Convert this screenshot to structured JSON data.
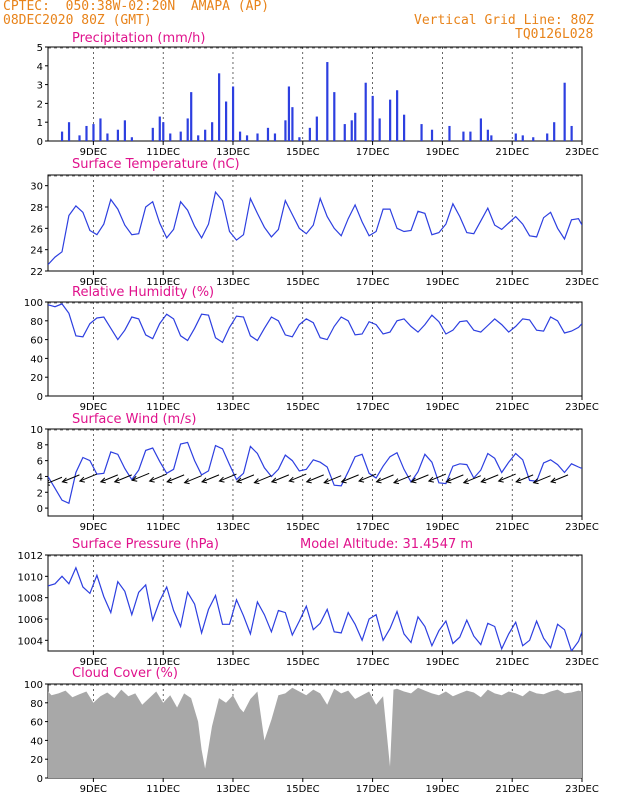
{
  "header": {
    "line1": "CPTEC:  050:38W-02:20N  AMAPA (AP)",
    "line2": "08DEC2020 80Z (GMT)",
    "grid_note": "Vertical Grid Line: 80Z",
    "code": "TQ0126L028",
    "model_altitude": "Model Altitude: 31.4547 m"
  },
  "colors": {
    "header": "#e8831a",
    "title": "#e0128c",
    "series": "#2d3fe0",
    "cloud": "#a8a8a8",
    "grid": "#000000"
  },
  "chart_data": [
    {
      "id": "precip",
      "type": "bar",
      "title": "Precipitation (mm/h)",
      "x_range_days": [
        7.7,
        23.0
      ],
      "ylim": [
        0,
        5
      ],
      "yticks": [
        "0",
        "1",
        "2",
        "3",
        "4",
        "5"
      ],
      "xtick_labels": [
        "9DEC",
        "11DEC",
        "13DEC",
        "15DEC",
        "17DEC",
        "19DEC",
        "21DEC",
        "23DEC"
      ],
      "x_day": [
        8.1,
        8.3,
        8.6,
        8.8,
        9.0,
        9.2,
        9.4,
        9.7,
        9.9,
        10.1,
        10.7,
        10.9,
        11.0,
        11.2,
        11.5,
        11.7,
        11.8,
        12.0,
        12.2,
        12.4,
        12.6,
        12.8,
        13.0,
        13.2,
        13.4,
        13.7,
        14.0,
        14.2,
        14.5,
        14.6,
        14.7,
        14.9,
        15.2,
        15.4,
        15.7,
        15.9,
        16.2,
        16.4,
        16.5,
        16.8,
        17.0,
        17.2,
        17.5,
        17.7,
        17.9,
        18.4,
        18.7,
        19.2,
        19.6,
        19.8,
        20.1,
        20.3,
        20.4,
        21.1,
        21.3,
        21.6,
        22.0,
        22.2,
        22.5,
        22.7
      ],
      "values": [
        0.5,
        1.0,
        0.3,
        0.8,
        0.9,
        1.2,
        0.4,
        0.6,
        1.1,
        0.2,
        0.7,
        1.3,
        1.0,
        0.4,
        0.5,
        1.2,
        2.6,
        0.3,
        0.6,
        1.0,
        3.6,
        2.1,
        2.9,
        0.5,
        0.3,
        0.4,
        0.7,
        0.4,
        1.1,
        2.9,
        1.8,
        0.2,
        0.7,
        1.3,
        4.2,
        2.6,
        0.9,
        1.1,
        1.5,
        3.1,
        2.4,
        1.2,
        2.2,
        2.7,
        1.4,
        0.9,
        0.6,
        0.8,
        0.5,
        0.5,
        1.2,
        0.6,
        0.3,
        0.4,
        0.3,
        0.2,
        0.4,
        1.0,
        3.1,
        0.8
      ]
    },
    {
      "id": "temp",
      "type": "line",
      "title": "Surface Temperature (nC)",
      "x_range_days": [
        7.7,
        23.0
      ],
      "ylim": [
        22,
        31
      ],
      "yticks": [
        "22",
        "24",
        "26",
        "28",
        "30"
      ],
      "xtick_labels": [
        "9DEC",
        "11DEC",
        "13DEC",
        "15DEC",
        "17DEC",
        "19DEC",
        "21DEC",
        "23DEC"
      ],
      "x_day": [
        7.7,
        7.9,
        8.1,
        8.3,
        8.5,
        8.7,
        8.9,
        9.1,
        9.3,
        9.5,
        9.7,
        9.9,
        10.1,
        10.3,
        10.5,
        10.7,
        10.9,
        11.1,
        11.3,
        11.5,
        11.7,
        11.9,
        12.1,
        12.3,
        12.5,
        12.7,
        12.9,
        13.1,
        13.3,
        13.5,
        13.7,
        13.9,
        14.1,
        14.3,
        14.5,
        14.7,
        14.9,
        15.1,
        15.3,
        15.5,
        15.7,
        15.9,
        16.1,
        16.3,
        16.5,
        16.7,
        16.9,
        17.1,
        17.3,
        17.5,
        17.7,
        17.9,
        18.1,
        18.3,
        18.5,
        18.7,
        18.9,
        19.1,
        19.3,
        19.5,
        19.7,
        19.9,
        20.1,
        20.3,
        20.5,
        20.7,
        20.9,
        21.1,
        21.3,
        21.5,
        21.7,
        21.9,
        22.1,
        22.3,
        22.5,
        22.7,
        22.9,
        23.0
      ],
      "values": [
        22.6,
        23.3,
        23.8,
        27.2,
        28.1,
        27.5,
        25.8,
        25.4,
        26.4,
        28.7,
        27.8,
        26.3,
        25.4,
        25.5,
        28.0,
        28.5,
        26.5,
        25.1,
        25.9,
        28.5,
        27.7,
        26.2,
        25.1,
        26.4,
        29.4,
        28.6,
        25.7,
        24.9,
        25.4,
        28.8,
        27.4,
        26.1,
        25.2,
        25.9,
        28.6,
        27.3,
        26.0,
        25.5,
        26.3,
        28.8,
        27.1,
        26.0,
        25.3,
        26.9,
        28.2,
        26.6,
        25.3,
        25.7,
        27.8,
        27.8,
        26.0,
        25.7,
        25.8,
        27.6,
        27.4,
        25.4,
        25.6,
        26.4,
        28.3,
        27.1,
        25.6,
        25.5,
        26.7,
        27.9,
        26.3,
        25.9,
        26.5,
        27.1,
        26.4,
        25.3,
        25.2,
        27.0,
        27.5,
        26.0,
        25.0,
        26.8,
        26.9,
        26.3
      ]
    },
    {
      "id": "rh",
      "type": "line",
      "title": "Relative Humidity (%)",
      "x_range_days": [
        7.7,
        23.0
      ],
      "ylim": [
        0,
        100
      ],
      "yticks": [
        "0",
        "20",
        "40",
        "60",
        "80",
        "100"
      ],
      "xtick_labels": [
        "9DEC",
        "11DEC",
        "13DEC",
        "15DEC",
        "17DEC",
        "19DEC",
        "21DEC",
        "23DEC"
      ],
      "x_day": [
        7.7,
        7.9,
        8.1,
        8.3,
        8.5,
        8.7,
        8.9,
        9.1,
        9.3,
        9.5,
        9.7,
        9.9,
        10.1,
        10.3,
        10.5,
        10.7,
        10.9,
        11.1,
        11.3,
        11.5,
        11.7,
        11.9,
        12.1,
        12.3,
        12.5,
        12.7,
        12.9,
        13.1,
        13.3,
        13.5,
        13.7,
        13.9,
        14.1,
        14.3,
        14.5,
        14.7,
        14.9,
        15.1,
        15.3,
        15.5,
        15.7,
        15.9,
        16.1,
        16.3,
        16.5,
        16.7,
        16.9,
        17.1,
        17.3,
        17.5,
        17.7,
        17.9,
        18.1,
        18.3,
        18.5,
        18.7,
        18.9,
        19.1,
        19.3,
        19.5,
        19.7,
        19.9,
        20.1,
        20.3,
        20.5,
        20.7,
        20.9,
        21.1,
        21.3,
        21.5,
        21.7,
        21.9,
        22.1,
        22.3,
        22.5,
        22.7,
        22.9,
        23.0
      ],
      "values": [
        97,
        95,
        98,
        88,
        64,
        63,
        77,
        83,
        84,
        72,
        60,
        70,
        84,
        82,
        65,
        61,
        77,
        87,
        82,
        64,
        59,
        72,
        87,
        86,
        62,
        57,
        73,
        85,
        84,
        64,
        59,
        72,
        84,
        80,
        65,
        63,
        76,
        82,
        78,
        62,
        60,
        74,
        84,
        80,
        65,
        66,
        79,
        76,
        66,
        68,
        80,
        82,
        74,
        68,
        76,
        86,
        79,
        66,
        70,
        79,
        80,
        70,
        68,
        75,
        82,
        76,
        68,
        74,
        82,
        81,
        70,
        69,
        84,
        80,
        67,
        69,
        73,
        77
      ]
    },
    {
      "id": "wind",
      "type": "line",
      "title": "Surface Wind (m/s)",
      "x_range_days": [
        7.7,
        23.0
      ],
      "ylim": [
        -1,
        10
      ],
      "yticks": [
        "0",
        "2",
        "4",
        "6",
        "8",
        "10"
      ],
      "xtick_labels": [
        "9DEC",
        "11DEC",
        "13DEC",
        "15DEC",
        "17DEC",
        "19DEC",
        "21DEC",
        "23DEC"
      ],
      "x_day": [
        7.7,
        7.9,
        8.1,
        8.3,
        8.5,
        8.7,
        8.9,
        9.1,
        9.3,
        9.5,
        9.7,
        9.9,
        10.1,
        10.3,
        10.5,
        10.7,
        10.9,
        11.1,
        11.3,
        11.5,
        11.7,
        11.9,
        12.1,
        12.3,
        12.5,
        12.7,
        12.9,
        13.1,
        13.3,
        13.5,
        13.7,
        13.9,
        14.1,
        14.3,
        14.5,
        14.7,
        14.9,
        15.1,
        15.3,
        15.5,
        15.7,
        15.9,
        16.1,
        16.3,
        16.5,
        16.7,
        16.9,
        17.1,
        17.3,
        17.5,
        17.7,
        17.9,
        18.1,
        18.3,
        18.5,
        18.7,
        18.9,
        19.1,
        19.3,
        19.5,
        19.7,
        19.9,
        20.1,
        20.3,
        20.5,
        20.7,
        20.9,
        21.1,
        21.3,
        21.5,
        21.7,
        21.9,
        22.1,
        22.3,
        22.5,
        22.7,
        22.9,
        23.0
      ],
      "values": [
        4.0,
        2.5,
        1.0,
        0.6,
        4.5,
        6.4,
        6.0,
        4.3,
        4.4,
        7.1,
        6.8,
        5.0,
        3.6,
        4.8,
        7.3,
        7.6,
        5.9,
        4.4,
        4.9,
        8.1,
        8.3,
        6.0,
        4.2,
        4.7,
        7.9,
        7.5,
        5.5,
        3.6,
        4.4,
        7.8,
        6.9,
        5.1,
        4.0,
        4.9,
        6.7,
        6.0,
        4.7,
        4.9,
        6.1,
        5.8,
        5.2,
        2.9,
        2.8,
        4.6,
        6.5,
        6.8,
        4.4,
        3.8,
        5.3,
        6.5,
        7.0,
        4.9,
        3.3,
        4.6,
        6.8,
        5.8,
        3.2,
        3.1,
        5.3,
        5.6,
        5.5,
        3.8,
        4.8,
        6.9,
        6.3,
        4.5,
        5.8,
        6.9,
        6.1,
        3.5,
        3.4,
        5.7,
        6.1,
        5.5,
        4.5,
        5.6,
        5.2,
        5.0
      ],
      "arrows_day": [
        8.1,
        8.6,
        9.1,
        9.7,
        10.1,
        10.6,
        11.1,
        11.6,
        12.1,
        12.6,
        13.1,
        13.6,
        14.1,
        14.6,
        15.1,
        15.6,
        16.1,
        16.6,
        17.1,
        17.6,
        18.1,
        18.6,
        19.1,
        19.6,
        20.1,
        20.6,
        21.1,
        21.6,
        22.1,
        22.6
      ],
      "arrows_level": [
        3.9,
        4.2,
        4.3,
        4.2,
        4.2,
        4.4,
        4.3,
        4.2,
        4.1,
        4.2,
        4.3,
        4.2,
        4.1,
        4.2,
        4.3,
        4.2,
        4.1,
        4.2,
        4.3,
        4.2,
        4.1,
        4.2,
        4.3,
        4.2,
        4.1,
        4.2,
        4.3,
        4.2,
        4.1,
        4.2
      ]
    },
    {
      "id": "press",
      "type": "line",
      "title": "Surface Pressure (hPa)",
      "x_range_days": [
        7.7,
        23.0
      ],
      "ylim": [
        1003,
        1012
      ],
      "yticks": [
        "1004",
        "1006",
        "1008",
        "1010",
        "1012"
      ],
      "xtick_labels": [
        "9DEC",
        "11DEC",
        "13DEC",
        "15DEC",
        "17DEC",
        "19DEC",
        "21DEC",
        "23DEC"
      ],
      "x_day": [
        7.7,
        7.9,
        8.1,
        8.3,
        8.5,
        8.7,
        8.9,
        9.1,
        9.3,
        9.5,
        9.7,
        9.9,
        10.1,
        10.3,
        10.5,
        10.7,
        10.9,
        11.1,
        11.3,
        11.5,
        11.7,
        11.9,
        12.1,
        12.3,
        12.5,
        12.7,
        12.9,
        13.1,
        13.3,
        13.5,
        13.7,
        13.9,
        14.1,
        14.3,
        14.5,
        14.7,
        14.9,
        15.1,
        15.3,
        15.5,
        15.7,
        15.9,
        16.1,
        16.3,
        16.5,
        16.7,
        16.9,
        17.1,
        17.3,
        17.5,
        17.7,
        17.9,
        18.1,
        18.3,
        18.5,
        18.7,
        18.9,
        19.1,
        19.3,
        19.5,
        19.7,
        19.9,
        20.1,
        20.3,
        20.5,
        20.7,
        20.9,
        21.1,
        21.3,
        21.5,
        21.7,
        21.9,
        22.1,
        22.3,
        22.5,
        22.7,
        22.9,
        23.0
      ],
      "values": [
        1009.1,
        1009.3,
        1010.0,
        1009.3,
        1010.8,
        1009.0,
        1008.4,
        1010.1,
        1008.1,
        1006.6,
        1009.5,
        1008.6,
        1006.4,
        1008.5,
        1009.2,
        1005.9,
        1007.7,
        1009.0,
        1006.8,
        1005.3,
        1008.5,
        1007.4,
        1004.7,
        1006.9,
        1008.2,
        1005.5,
        1005.5,
        1007.8,
        1006.3,
        1004.6,
        1007.6,
        1006.4,
        1004.8,
        1006.8,
        1006.6,
        1004.5,
        1005.8,
        1007.2,
        1005.0,
        1005.6,
        1006.9,
        1004.8,
        1004.7,
        1006.6,
        1005.5,
        1004.0,
        1006.0,
        1006.4,
        1004.0,
        1005.1,
        1006.7,
        1004.6,
        1003.8,
        1006.2,
        1005.3,
        1003.5,
        1004.9,
        1005.8,
        1003.7,
        1004.3,
        1005.9,
        1004.4,
        1003.6,
        1005.6,
        1005.3,
        1003.2,
        1004.6,
        1005.7,
        1003.5,
        1004.0,
        1005.8,
        1004.2,
        1003.3,
        1005.5,
        1005.0,
        1003.0,
        1003.9,
        1004.8
      ]
    },
    {
      "id": "cloud",
      "type": "area",
      "title": "Cloud Cover (%)",
      "x_range_days": [
        7.7,
        23.0
      ],
      "ylim": [
        0,
        100
      ],
      "yticks": [
        "0",
        "20",
        "40",
        "60",
        "80",
        "100"
      ],
      "xtick_labels": [
        "9DEC",
        "11DEC",
        "13DEC",
        "15DEC",
        "17DEC",
        "19DEC",
        "21DEC",
        "23DEC"
      ],
      "x_day": [
        7.7,
        7.8,
        8.0,
        8.2,
        8.4,
        8.6,
        8.8,
        9.0,
        9.2,
        9.4,
        9.6,
        9.8,
        10.0,
        10.2,
        10.4,
        10.6,
        10.8,
        11.0,
        11.2,
        11.4,
        11.6,
        11.8,
        12.0,
        12.1,
        12.2,
        12.4,
        12.6,
        12.8,
        13.0,
        13.2,
        13.3,
        13.5,
        13.7,
        13.9,
        14.1,
        14.3,
        14.5,
        14.7,
        14.9,
        15.1,
        15.3,
        15.5,
        15.7,
        15.9,
        16.1,
        16.3,
        16.5,
        16.7,
        16.9,
        17.1,
        17.3,
        17.5,
        17.6,
        17.7,
        17.9,
        18.1,
        18.3,
        18.5,
        18.7,
        18.9,
        19.1,
        19.3,
        19.5,
        19.7,
        19.9,
        20.1,
        20.3,
        20.5,
        20.7,
        20.9,
        21.1,
        21.3,
        21.5,
        21.7,
        21.9,
        22.1,
        22.3,
        22.5,
        22.7,
        22.9,
        23.0
      ],
      "values": [
        92,
        88,
        90,
        93,
        86,
        89,
        92,
        80,
        87,
        91,
        85,
        94,
        87,
        90,
        78,
        85,
        92,
        80,
        88,
        75,
        90,
        85,
        60,
        30,
        10,
        55,
        85,
        80,
        88,
        74,
        70,
        84,
        92,
        40,
        62,
        88,
        90,
        96,
        92,
        88,
        94,
        90,
        78,
        95,
        90,
        93,
        84,
        88,
        92,
        78,
        87,
        12,
        94,
        95,
        92,
        90,
        96,
        93,
        90,
        88,
        92,
        87,
        90,
        93,
        91,
        86,
        94,
        90,
        88,
        92,
        90,
        87,
        93,
        90,
        89,
        92,
        94,
        90,
        91,
        93,
        92
      ]
    }
  ]
}
